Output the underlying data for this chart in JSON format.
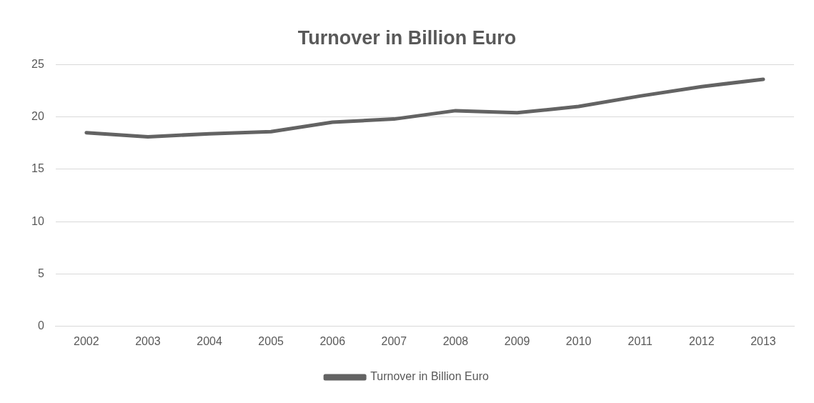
{
  "chart_data": {
    "type": "line",
    "title": "Turnover in Billion Euro",
    "categories": [
      "2002",
      "2003",
      "2004",
      "2005",
      "2006",
      "2007",
      "2008",
      "2009",
      "2010",
      "2011",
      "2012",
      "2013"
    ],
    "series": [
      {
        "name": "Turnover in Billion Euro",
        "color": "#636363",
        "values": [
          18.5,
          18.1,
          18.4,
          18.6,
          19.5,
          19.8,
          20.6,
          20.4,
          21.0,
          22.0,
          22.9,
          23.6
        ]
      }
    ],
    "ylim": [
      0,
      25
    ],
    "yticks": [
      0,
      5,
      10,
      15,
      20,
      25
    ],
    "grid": "y",
    "legend": "bottom",
    "marker": "none",
    "line_style": "solid"
  }
}
